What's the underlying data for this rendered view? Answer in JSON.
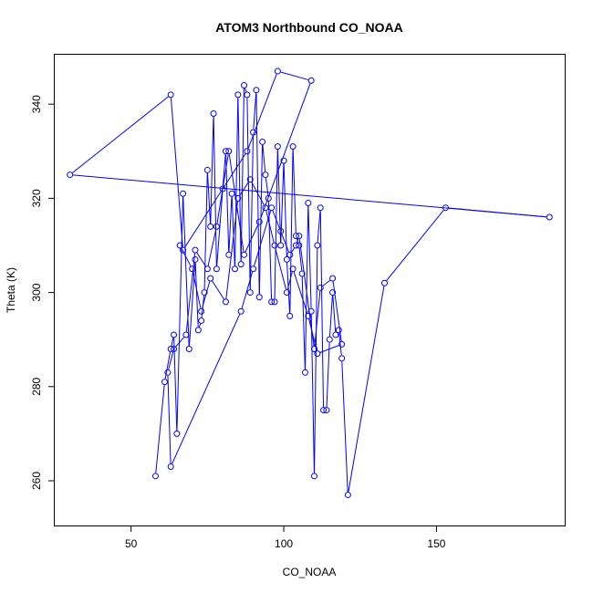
{
  "chart_data": {
    "type": "line",
    "title": "ATOM3 Northbound CO_NOAA",
    "xlabel": "CO_NOAA",
    "ylabel": "Theta (K)",
    "xlim": [
      25,
      192
    ],
    "ylim": [
      250.5,
      350.5
    ],
    "x_ticks": [
      50,
      100,
      150
    ],
    "y_ticks": [
      260,
      280,
      300,
      320,
      340
    ],
    "x_tick_labels": [
      "50",
      "100",
      "150"
    ],
    "y_tick_labels": [
      "260",
      "280",
      "300",
      "320",
      "340"
    ],
    "grid": false,
    "color": "#0000ff",
    "marker": "open-circle",
    "series": [
      {
        "x": [
          58,
          61,
          63,
          64,
          65,
          67,
          69,
          71,
          72,
          73,
          74,
          75,
          76,
          77,
          78,
          80,
          81,
          82,
          83,
          84,
          85,
          86,
          87,
          88,
          89,
          90,
          91,
          92,
          93,
          94,
          95,
          96,
          97,
          98,
          99,
          100,
          101,
          102,
          103,
          104,
          105,
          106,
          107,
          108,
          109,
          110,
          111,
          112,
          113,
          114,
          115,
          116,
          117,
          118,
          119,
          121,
          133,
          153,
          187,
          30,
          63,
          67,
          88,
          98,
          109,
          92,
          87,
          82,
          78,
          75,
          71,
          68,
          64,
          62,
          63,
          86,
          90,
          96,
          99,
          102,
          104,
          105,
          110,
          112,
          116,
          119,
          111,
          108,
          103,
          101,
          97,
          94,
          89,
          85,
          81,
          76,
          73,
          70,
          66
        ],
        "y": [
          261,
          281,
          288,
          291,
          270,
          321,
          288,
          307,
          292,
          294,
          300,
          326,
          314,
          338,
          305,
          322,
          330,
          308,
          321,
          305,
          342,
          306,
          344,
          342,
          300,
          334,
          343,
          299,
          332,
          325,
          320,
          298,
          298,
          331,
          310,
          328,
          307,
          295,
          331,
          312,
          310,
          304,
          283,
          319,
          296,
          261,
          310,
          318,
          275,
          275,
          290,
          300,
          291,
          292,
          286,
          257,
          302,
          318,
          316,
          325,
          342,
          309,
          330,
          347,
          345,
          315,
          308,
          330,
          314,
          305,
          309,
          291,
          288,
          283,
          263,
          296,
          305,
          318,
          313,
          308,
          310,
          312,
          288,
          301,
          303,
          289,
          287,
          295,
          305,
          300,
          310,
          318,
          324,
          320,
          298,
          303,
          296,
          305,
          310
        ]
      }
    ]
  }
}
